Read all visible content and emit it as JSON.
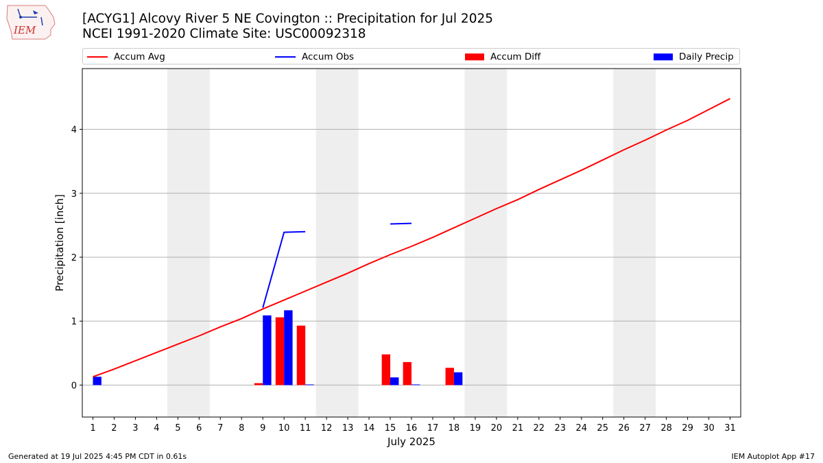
{
  "header": {
    "logo_text": "IEM",
    "title_line1": "[ACYG1] Alcovy River 5 NE Covington :: Precipitation for Jul 2025",
    "title_line2": "NCEI 1991-2020 Climate Site: USC00092318"
  },
  "legend": [
    {
      "label": "Accum Avg",
      "kind": "line",
      "color": "#ff0000"
    },
    {
      "label": "Accum Obs",
      "kind": "line",
      "color": "#0000ff"
    },
    {
      "label": "Accum Diff",
      "kind": "bar",
      "color": "#ff0000"
    },
    {
      "label": "Daily Precip",
      "kind": "bar",
      "color": "#0000ff"
    }
  ],
  "footer": {
    "left": "Generated at 19 Jul 2025 4:45 PM CDT in 0.61s",
    "right": "IEM Autoplot App #17"
  },
  "chart_data": {
    "type": "bar",
    "xlabel": "July 2025",
    "ylabel": "Precipitation [inch]",
    "xlim": [
      0.5,
      31.5
    ],
    "ylim": [
      -0.5,
      4.95
    ],
    "yticks": [
      0,
      1,
      2,
      3,
      4
    ],
    "xticks": [
      1,
      2,
      3,
      4,
      5,
      6,
      7,
      8,
      9,
      10,
      11,
      12,
      13,
      14,
      15,
      16,
      17,
      18,
      19,
      20,
      21,
      22,
      23,
      24,
      25,
      26,
      27,
      28,
      29,
      30,
      31
    ],
    "grid": "horizontal",
    "weekend_shading": [
      [
        4.5,
        6.5
      ],
      [
        11.5,
        13.5
      ],
      [
        18.5,
        20.5
      ],
      [
        25.5,
        27.5
      ]
    ],
    "shading_color": "#eeeeee",
    "series": [
      {
        "name": "Accum Avg",
        "kind": "line",
        "color": "#ff0000",
        "x": [
          1,
          2,
          3,
          4,
          5,
          6,
          7,
          8,
          9,
          10,
          11,
          12,
          13,
          14,
          15,
          16,
          17,
          18,
          19,
          20,
          21,
          22,
          23,
          24,
          25,
          26,
          27,
          28,
          29,
          30,
          31
        ],
        "values": [
          0.13,
          0.25,
          0.38,
          0.51,
          0.64,
          0.77,
          0.91,
          1.04,
          1.19,
          1.33,
          1.47,
          1.61,
          1.75,
          1.9,
          2.04,
          2.17,
          2.31,
          2.46,
          2.61,
          2.76,
          2.9,
          3.06,
          3.21,
          3.36,
          3.52,
          3.68,
          3.83,
          3.99,
          4.14,
          4.31,
          4.48
        ]
      },
      {
        "name": "Accum Obs",
        "kind": "line",
        "color": "#0000ff",
        "segments": [
          {
            "x": [
              9,
              10,
              11
            ],
            "values": [
              1.21,
              2.39,
              2.4
            ]
          },
          {
            "x": [
              15,
              16
            ],
            "values": [
              2.52,
              2.53
            ]
          }
        ]
      },
      {
        "name": "Accum Diff",
        "kind": "bar",
        "color": "#ff0000",
        "x": [
          9,
          10,
          11,
          15,
          16,
          18
        ],
        "values": [
          0.03,
          1.06,
          0.93,
          0.48,
          0.36,
          0.27
        ]
      },
      {
        "name": "Daily Precip",
        "kind": "bar",
        "color": "#0000ff",
        "x": [
          1,
          9,
          10,
          11,
          15,
          16,
          18
        ],
        "values": [
          0.13,
          1.09,
          1.17,
          0.01,
          0.12,
          0.01,
          0.2
        ]
      }
    ]
  }
}
